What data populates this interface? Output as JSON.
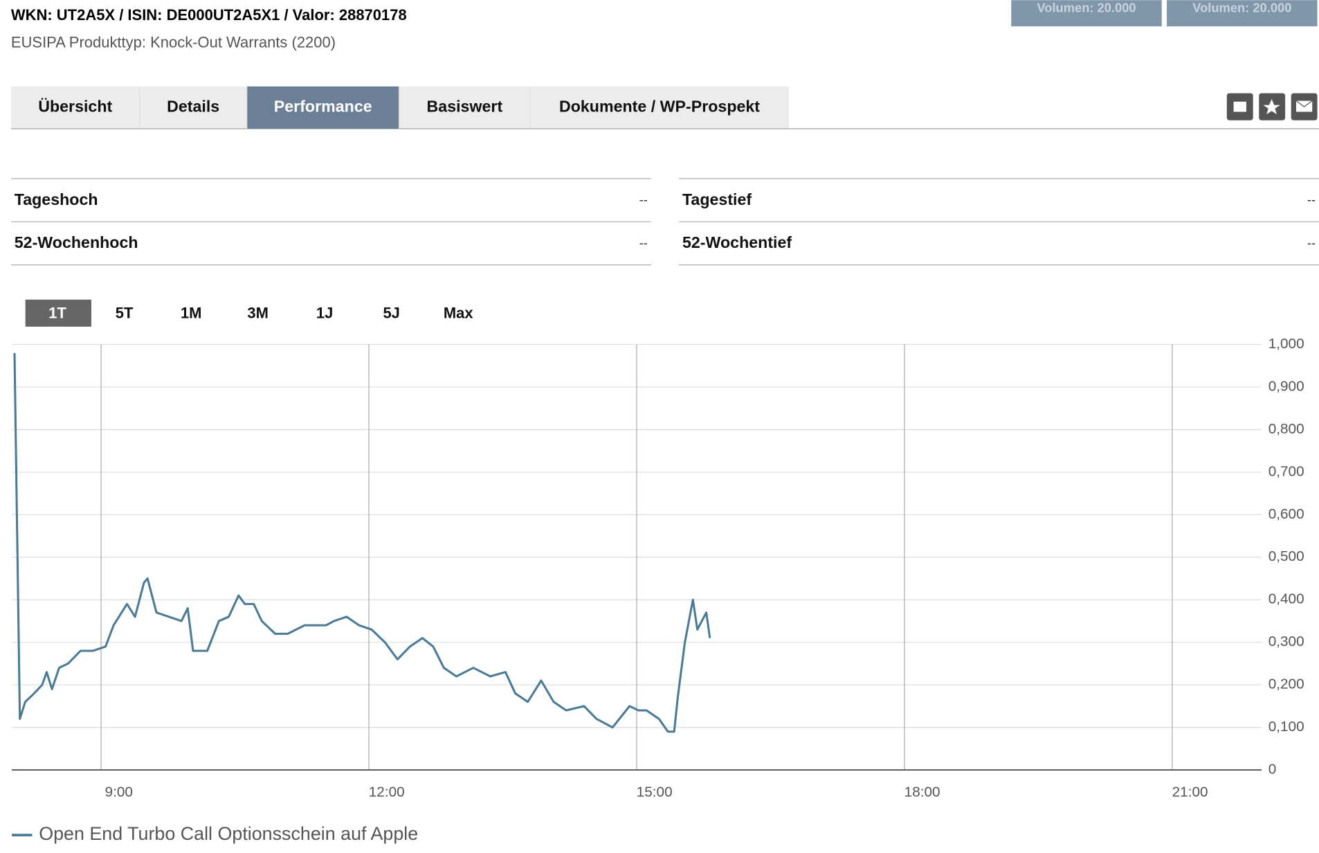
{
  "header": {
    "title": "WKN: UT2A5X / ISIN: DE000UT2A5X1 / Valor: 28870178",
    "subtitle": "EUSIPA Produkttyp: Knock-Out Warrants (2200)"
  },
  "top_buttons": [
    "Volumen: 20.000",
    "Volumen: 20.000"
  ],
  "tabs": [
    "Übersicht",
    "Details",
    "Performance",
    "Basiswert",
    "Dokumente / WP-Prospekt"
  ],
  "active_tab": 2,
  "stats": [
    {
      "label": "Tageshoch",
      "value": "--"
    },
    {
      "label": "Tagestief",
      "value": "--"
    },
    {
      "label": "52-Wochenhoch",
      "value": "--"
    },
    {
      "label": "52-Wochentief",
      "value": "--"
    }
  ],
  "range_buttons": [
    "1T",
    "5T",
    "1M",
    "3M",
    "1J",
    "5J",
    "Max"
  ],
  "active_range": 0,
  "chart_data": {
    "type": "line",
    "grid": true,
    "xlim": [
      8,
      22
    ],
    "xticks": [
      {
        "value": 9,
        "label": "9:00"
      },
      {
        "value": 12,
        "label": "12:00"
      },
      {
        "value": 15,
        "label": "15:00"
      },
      {
        "value": 18,
        "label": "18:00"
      },
      {
        "value": 21,
        "label": "21:00"
      }
    ],
    "ylim": [
      0,
      1
    ],
    "yticks": [
      0,
      {
        "value": 0.1,
        "label": "0,100"
      },
      {
        "value": 0.2,
        "label": "0,200"
      },
      {
        "value": 0.3,
        "label": "0,300"
      },
      {
        "value": 0.4,
        "label": "0,400"
      },
      {
        "value": 0.5,
        "label": "0,500"
      },
      {
        "value": 0.6,
        "label": "0,600"
      },
      {
        "value": 0.7,
        "label": "0,700"
      },
      {
        "value": 0.8,
        "label": "0,800"
      },
      {
        "value": 0.9,
        "label": "0,900"
      },
      {
        "value": 1,
        "label": "1,000"
      }
    ],
    "x": [
      8.03,
      8.09,
      8.15,
      8.25,
      8.34,
      8.39,
      8.45,
      8.53,
      8.63,
      8.77,
      8.91,
      9.05,
      9.14,
      9.29,
      9.38,
      9.48,
      9.52,
      9.62,
      9.9,
      9.97,
      10.03,
      10.19,
      10.32,
      10.43,
      10.54,
      10.61,
      10.71,
      10.8,
      10.95,
      11.09,
      11.28,
      11.52,
      11.61,
      11.75,
      11.89,
      12.03,
      12.18,
      12.32,
      12.46,
      12.6,
      12.72,
      12.84,
      12.98,
      13.17,
      13.36,
      13.53,
      13.64,
      13.78,
      13.93,
      14.07,
      14.21,
      14.41,
      14.55,
      14.73,
      14.92,
      15.02,
      15.11,
      15.25,
      15.35,
      15.42,
      15.46,
      15.54,
      15.63,
      15.68,
      15.73,
      15.78,
      15.82
    ],
    "series": [
      {
        "name": "Open End Turbo Call Optionsschein auf Apple",
        "color": "#4a7a94",
        "values": [
          0.98,
          0.12,
          0.16,
          0.18,
          0.2,
          0.23,
          0.19,
          0.24,
          0.25,
          0.28,
          0.28,
          0.29,
          0.34,
          0.39,
          0.36,
          0.44,
          0.45,
          0.37,
          0.35,
          0.38,
          0.28,
          0.28,
          0.35,
          0.36,
          0.41,
          0.39,
          0.39,
          0.35,
          0.32,
          0.32,
          0.34,
          0.34,
          0.35,
          0.36,
          0.34,
          0.33,
          0.3,
          0.26,
          0.29,
          0.31,
          0.29,
          0.24,
          0.22,
          0.24,
          0.22,
          0.23,
          0.18,
          0.16,
          0.21,
          0.16,
          0.14,
          0.15,
          0.12,
          0.1,
          0.15,
          0.14,
          0.14,
          0.12,
          0.09,
          0.09,
          0.17,
          0.3,
          0.4,
          0.33,
          0.35,
          0.37,
          0.31
        ]
      }
    ]
  }
}
